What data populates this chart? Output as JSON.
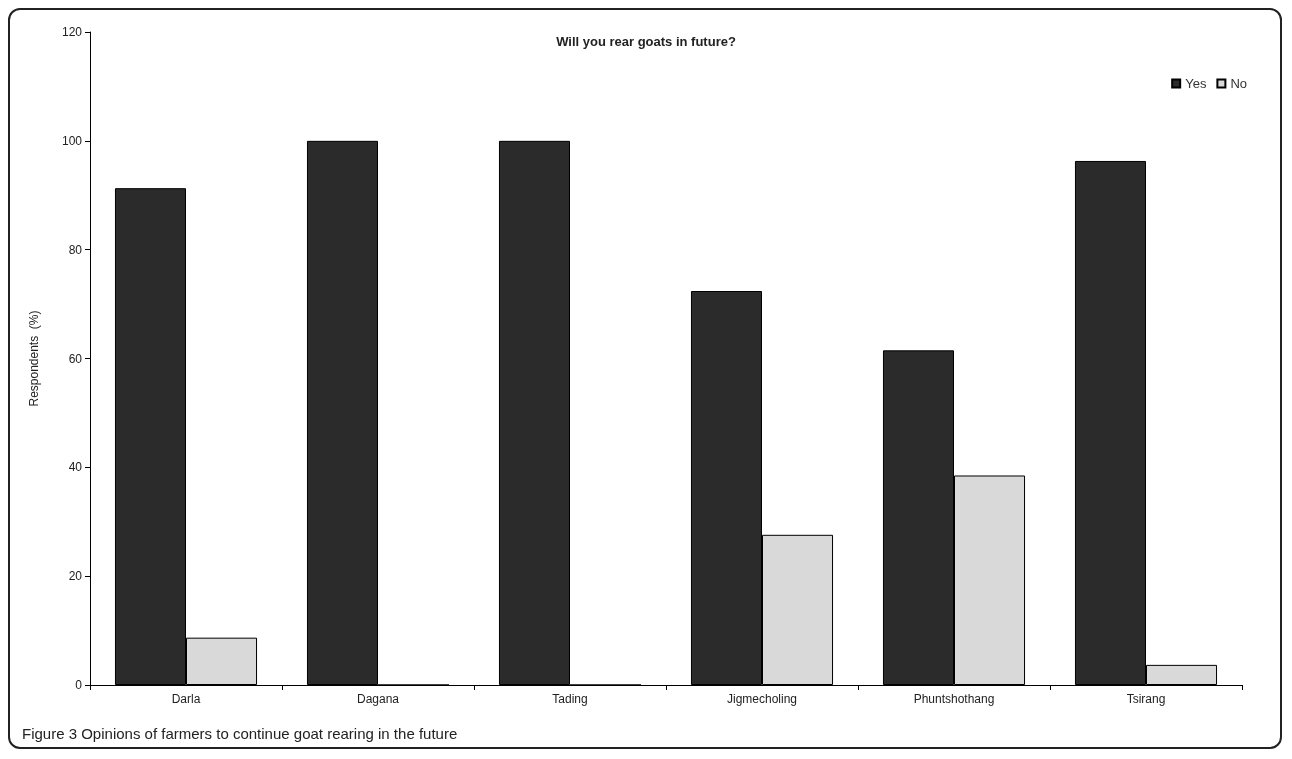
{
  "chart_data": {
    "type": "bar",
    "title": "Will you rear goats in future?",
    "ylabel": "Respondents  (%)",
    "categories": [
      "Darla",
      "Dagana",
      "Tading",
      "Jigmecholing",
      "Phuntshothang",
      "Tsirang"
    ],
    "series": [
      {
        "name": "Yes",
        "color": "#2b2b2b",
        "values": [
          91.3,
          100,
          100,
          72.4,
          61.5,
          96.3
        ]
      },
      {
        "name": "No",
        "color": "#d9d9d9",
        "values": [
          8.7,
          0,
          0,
          27.6,
          38.5,
          3.7
        ]
      }
    ],
    "ylim": [
      0,
      120
    ],
    "yticks": [
      0,
      20,
      40,
      60,
      80,
      100,
      120
    ],
    "grid": false,
    "legend": "top right",
    "annotations": [
      "Figure 3 Opinions of farmers to continue goat rearing in the future"
    ]
  }
}
